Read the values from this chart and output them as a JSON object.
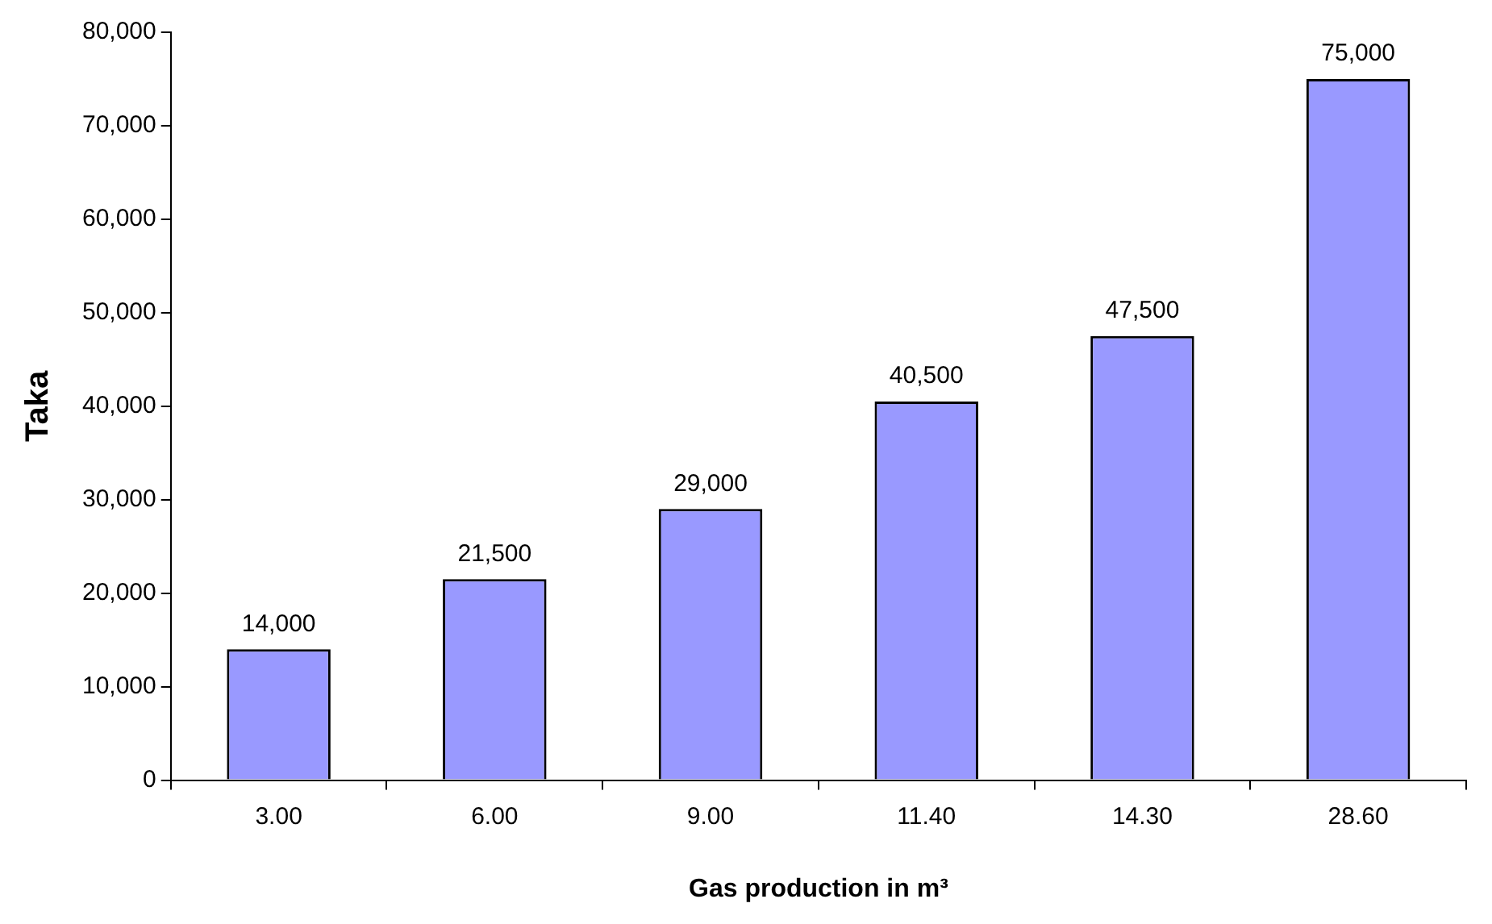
{
  "chart_data": {
    "type": "bar",
    "xlabel": "Gas production in m³",
    "ylabel": "Taka",
    "categories": [
      "3.00",
      "6.00",
      "9.00",
      "11.40",
      "14.30",
      "28.60"
    ],
    "values": [
      14000,
      21500,
      29000,
      40500,
      47500,
      75000
    ],
    "value_labels": [
      "14,000",
      "21,500",
      "29,000",
      "40,500",
      "47,500",
      "75,000"
    ],
    "color": "#9999ff",
    "ylim": [
      0,
      80000
    ],
    "yticks": [
      {
        "value": 0,
        "label": "0"
      },
      {
        "value": 10000,
        "label": "10,000"
      },
      {
        "value": 20000,
        "label": "20,000"
      },
      {
        "value": 30000,
        "label": "30,000"
      },
      {
        "value": 40000,
        "label": "40,000"
      },
      {
        "value": 50000,
        "label": "50,000"
      },
      {
        "value": 60000,
        "label": "60,000"
      },
      {
        "value": 70000,
        "label": "70,000"
      },
      {
        "value": 80000,
        "label": "80,000"
      }
    ],
    "grid": false,
    "legend": false
  }
}
